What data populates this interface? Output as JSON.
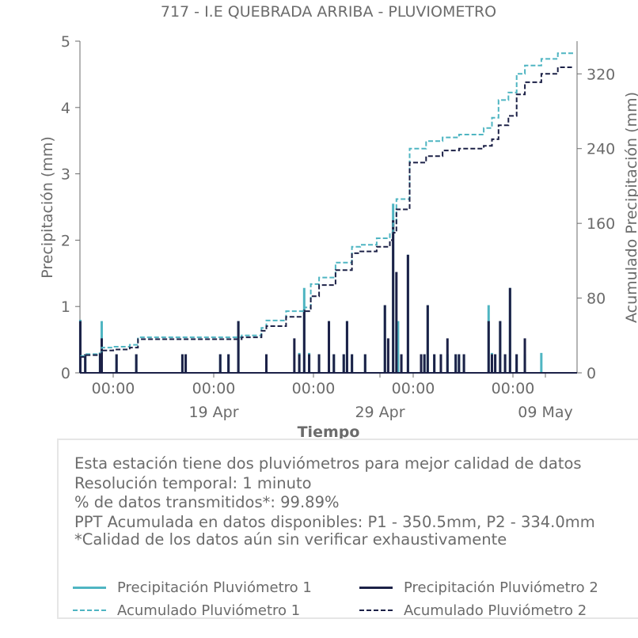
{
  "chart_data": {
    "type": "bar",
    "title": "717 - I.E QUEBRADA ARRIBA - PLUVIOMETRO",
    "xlabel": "Tiempo",
    "ylabel_left": "Precipitación (mm)",
    "ylabel_right": "Acumulado Precipitación (mm)",
    "ylim_left": [
      0,
      5
    ],
    "ylim_right": [
      0,
      355
    ],
    "yticks_left": [
      "0",
      "1",
      "2",
      "3",
      "4",
      "5"
    ],
    "yticks_right": [
      "0",
      "80",
      "160",
      "240",
      "320"
    ],
    "x_range": [
      "2024-04-10",
      "2024-05-12"
    ],
    "xtick_times": [
      "00:00",
      "00:00",
      "00:00",
      "00:00",
      "00:00"
    ],
    "xtick_dates": [
      "19 Apr",
      "29 Apr",
      "09 May"
    ],
    "colors": {
      "p1": "#4fb5c2",
      "p2": "#1c2147"
    },
    "series": [
      {
        "name": "Precipitación Pluviómetro 1",
        "style": "bar",
        "x": [
          0.0,
          0.3,
          1.2,
          1.3,
          2.2,
          3.4,
          6.2,
          6.4,
          8.5,
          9.0,
          9.6,
          11.3,
          13.3,
          13.6,
          13.9,
          14.5,
          15.1,
          15.4,
          16.0,
          16.2,
          16.5,
          17.3,
          18.5,
          19.0,
          19.3,
          19.5,
          19.9,
          20.7,
          20.9,
          21.1,
          21.5,
          21.9,
          22.3,
          22.8,
          23.0,
          23.3,
          24.8,
          25.0,
          25.2,
          25.5,
          25.8,
          26.1,
          26.5,
          27.0,
          28.0
        ],
        "values": [
          0.8,
          0.28,
          0.3,
          0.78,
          0.28,
          0.28,
          0.28,
          0.28,
          0.28,
          0.28,
          0.78,
          0.28,
          0.3,
          1.28,
          0.3,
          0.28,
          0.78,
          0.28,
          0.28,
          0.78,
          0.28,
          0.28,
          1.02,
          2.55,
          0.78,
          0.28,
          1.78,
          0.28,
          0.28,
          1.02,
          0.28,
          0.28,
          0.28,
          0.28,
          0.28,
          0.28,
          1.02,
          0.3,
          0.28,
          0.78,
          0.28,
          1.28,
          0.28,
          0.28,
          0.3
        ]
      },
      {
        "name": "Precipitación Pluviómetro 2",
        "style": "bar",
        "x": [
          0.0,
          0.3,
          1.2,
          1.3,
          2.2,
          3.4,
          6.2,
          6.4,
          8.5,
          9.0,
          9.6,
          11.3,
          13.0,
          13.3,
          13.6,
          13.9,
          14.5,
          15.1,
          15.4,
          16.0,
          16.2,
          16.5,
          17.3,
          18.5,
          18.7,
          19.0,
          19.2,
          19.5,
          19.9,
          20.7,
          20.9,
          21.1,
          21.5,
          21.9,
          22.3,
          22.8,
          23.0,
          23.3,
          24.8,
          25.0,
          25.2,
          25.5,
          25.8,
          26.1,
          26.5,
          27.0
        ],
        "values": [
          0.78,
          0.28,
          0.3,
          0.52,
          0.28,
          0.28,
          0.28,
          0.28,
          0.28,
          0.28,
          0.78,
          0.28,
          0.52,
          0.28,
          0.95,
          0.28,
          0.28,
          0.78,
          0.28,
          0.28,
          0.78,
          0.28,
          0.28,
          1.02,
          0.52,
          2.3,
          1.52,
          0.28,
          1.78,
          0.28,
          0.28,
          1.02,
          0.28,
          0.28,
          0.52,
          0.28,
          0.28,
          0.28,
          0.78,
          0.28,
          0.28,
          0.78,
          0.28,
          1.28,
          0.28,
          0.52
        ]
      },
      {
        "name": "Acumulado Pluviómetro 1",
        "style": "dashed-step",
        "x": [
          0,
          0.3,
          1.0,
          1.3,
          2.0,
          3.0,
          3.5,
          9.6,
          9.8,
          11.0,
          11.3,
          12.5,
          13.6,
          14.0,
          14.5,
          15.5,
          16.5,
          17.0,
          18.0,
          18.8,
          19.0,
          19.2,
          20.0,
          21.0,
          22.0,
          23.0,
          23.6,
          24.5,
          25.0,
          25.4,
          26.0,
          26.5,
          27.0,
          28.0,
          29.0,
          30.0
        ],
        "values": [
          18,
          20,
          21,
          27,
          28,
          30,
          38,
          38,
          40,
          48,
          56,
          66,
          70,
          95,
          102,
          118,
          135,
          137,
          144,
          150,
          160,
          186,
          240,
          248,
          252,
          255,
          255,
          262,
          273,
          292,
          300,
          320,
          329,
          336,
          342,
          342
        ]
      },
      {
        "name": "Acumulado Pluviómetro 2",
        "style": "dashed-step",
        "x": [
          0,
          0.3,
          1.0,
          1.3,
          2.0,
          3.0,
          3.5,
          9.6,
          9.8,
          11.0,
          11.3,
          12.5,
          13.6,
          14.0,
          14.5,
          15.5,
          16.5,
          17.0,
          18.0,
          18.8,
          19.0,
          19.2,
          20.0,
          21.0,
          22.0,
          23.0,
          23.6,
          24.5,
          25.0,
          25.4,
          26.0,
          26.5,
          27.0,
          28.0,
          29.0,
          30.0
        ],
        "values": [
          17,
          19,
          20,
          24,
          25,
          27,
          36,
          36,
          38,
          45,
          50,
          60,
          66,
          82,
          94,
          110,
          128,
          130,
          135,
          142,
          150,
          175,
          225,
          232,
          238,
          240,
          240,
          243,
          250,
          265,
          275,
          298,
          311,
          320,
          327,
          327
        ]
      }
    ]
  },
  "info": {
    "line1": "Esta estación tiene dos pluviómetros para mejor calidad de datos",
    "line2": "Resolución temporal: 1 minuto",
    "line3": "% de datos transmitidos*: 99.89%",
    "line4": "PPT Acumulada en datos disponibles: P1 - 350.5mm, P2 - 334.0mm",
    "line5": "*Calidad de los datos aún sin verificar exhaustivamente"
  },
  "legend": {
    "p1": "Precipitación Pluviómetro 1",
    "p2": "Precipitación Pluviómetro 2",
    "a1": "Acumulado Pluviómetro 1",
    "a2": "Acumulado Pluviómetro 2"
  }
}
